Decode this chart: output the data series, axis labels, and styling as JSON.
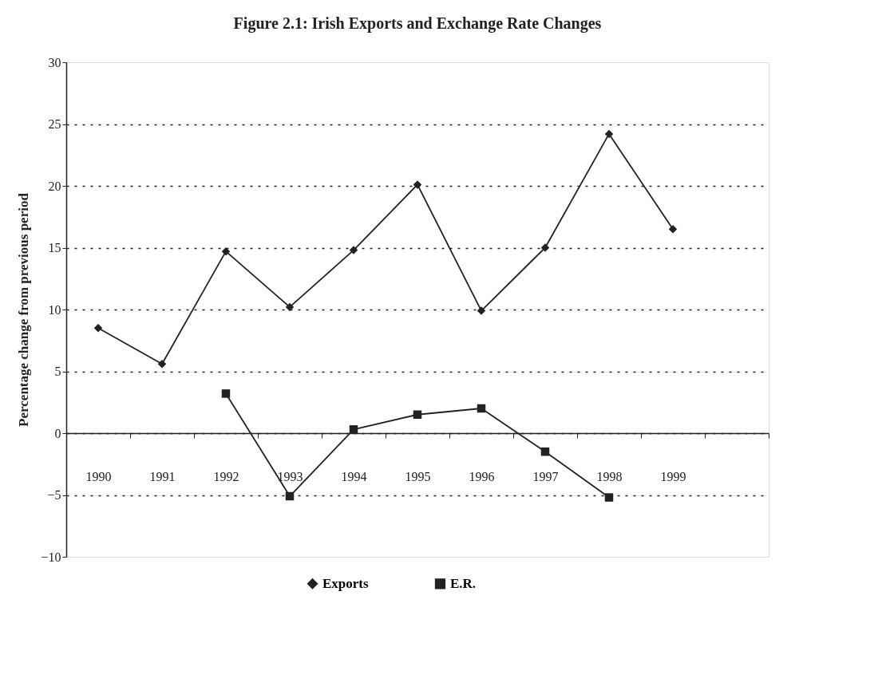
{
  "chart_data": {
    "type": "line",
    "title": "Figure 2.1: Irish Exports and Exchange Rate Changes",
    "ylabel": "Percentage change from previous period",
    "categories": [
      "1990",
      "1991",
      "1992",
      "1993",
      "1994",
      "1995",
      "1996",
      "1997",
      "1998",
      "1999",
      null
    ],
    "series": [
      {
        "name": "Exports",
        "color": "#222222",
        "marker": "diamond",
        "values": [
          8.5,
          5.6,
          14.7,
          10.2,
          14.8,
          20.1,
          9.9,
          15.0,
          24.2,
          16.5,
          null
        ]
      },
      {
        "name": "E.R.",
        "color": "#222222",
        "marker": "square",
        "values": [
          null,
          null,
          3.2,
          -5.1,
          0.3,
          1.5,
          2.0,
          -1.5,
          -5.2,
          null,
          null
        ]
      }
    ],
    "ylim": [
      -10,
      30
    ],
    "yticks": [
      -10,
      -5,
      0,
      5,
      10,
      15,
      20,
      25,
      30
    ],
    "grid": "y",
    "legend": "bottom",
    "line_style": "solid"
  }
}
